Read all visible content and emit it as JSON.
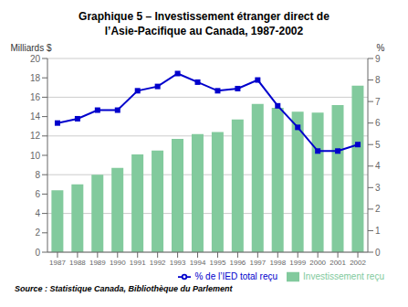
{
  "chart_data": {
    "type": "bar",
    "title": "Graphique 5 – Investissement étranger direct de\nl’Asie-Pacifique au Canada, 1987-2002",
    "annotations": [
      "Source : Statistique Canada, Bibliothèque du Parlement"
    ],
    "categories": [
      1987,
      1988,
      1989,
      1990,
      1991,
      1992,
      1993,
      1994,
      1995,
      1996,
      1997,
      1998,
      1999,
      2000,
      2001,
      2002
    ],
    "ylabel": "Milliards $",
    "y2label": "%",
    "ylim": [
      0,
      20
    ],
    "yticks": [
      0,
      2,
      4,
      6,
      8,
      10,
      12,
      14,
      16,
      18,
      20
    ],
    "y2lim": [
      0,
      9
    ],
    "y2ticks": [
      0,
      1,
      2,
      3,
      4,
      5,
      6,
      7,
      8,
      9
    ],
    "grid": true,
    "legend": "lower right",
    "series": [
      {
        "name": "Investissement reçu",
        "type": "bar",
        "color": "#82ca9d",
        "values": [
          6.4,
          7.0,
          8.0,
          8.7,
          10.1,
          10.5,
          11.7,
          12.2,
          12.4,
          13.7,
          15.3,
          14.9,
          14.5,
          14.4,
          15.2,
          17.2
        ]
      },
      {
        "name": "% de l’IED total reçu",
        "type": "line",
        "axis": "y2",
        "color": "#0000CC",
        "marker": "square",
        "values": [
          6.0,
          6.2,
          6.6,
          6.6,
          7.5,
          7.7,
          8.3,
          7.9,
          7.5,
          7.6,
          8.0,
          6.8,
          5.8,
          4.7,
          4.7,
          5.0
        ]
      }
    ]
  }
}
